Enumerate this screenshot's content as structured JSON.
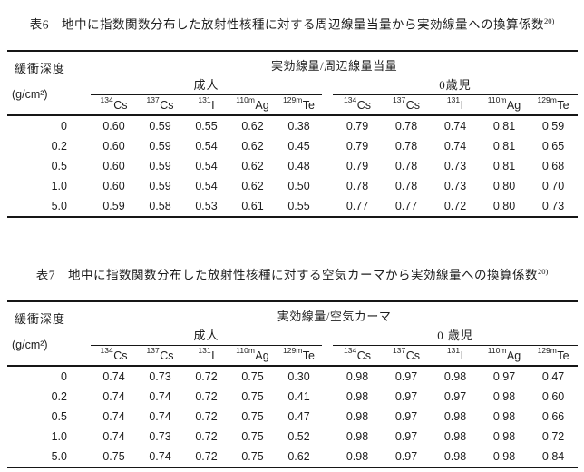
{
  "colors": {
    "background": "#ffffff",
    "text": "#1d1d1d",
    "rule": "#161616"
  },
  "document": {
    "tables": [
      {
        "title": "表6　地中に指数関数分布した放射性核種に対する周辺線量当量から実効線量への換算係数",
        "title_ref": "20)",
        "quantity_header": "実効線量/周辺線量当量",
        "depth_header": "緩衝深度",
        "depth_unit": "(g/cm²)",
        "groups": [
          {
            "label": "成人",
            "nuclides": [
              {
                "mass": "134",
                "symbol": "Cs"
              },
              {
                "mass": "137",
                "symbol": "Cs"
              },
              {
                "mass": "131",
                "symbol": "I"
              },
              {
                "mass": "110m",
                "symbol": "Ag"
              },
              {
                "mass": "129m",
                "symbol": "Te"
              }
            ]
          },
          {
            "label": "0歳児",
            "nuclides": [
              {
                "mass": "134",
                "symbol": "Cs"
              },
              {
                "mass": "137",
                "symbol": "Cs"
              },
              {
                "mass": "131",
                "symbol": "I"
              },
              {
                "mass": "110m",
                "symbol": "Ag"
              },
              {
                "mass": "129m",
                "symbol": "Te"
              }
            ]
          }
        ],
        "rows": [
          {
            "depth": "0",
            "adult": [
              "0.60",
              "0.59",
              "0.55",
              "0.62",
              "0.38"
            ],
            "infant": [
              "0.79",
              "0.78",
              "0.74",
              "0.81",
              "0.59"
            ]
          },
          {
            "depth": "0.2",
            "adult": [
              "0.60",
              "0.59",
              "0.54",
              "0.62",
              "0.45"
            ],
            "infant": [
              "0.79",
              "0.78",
              "0.74",
              "0.81",
              "0.65"
            ]
          },
          {
            "depth": "0.5",
            "adult": [
              "0.60",
              "0.59",
              "0.54",
              "0.62",
              "0.48"
            ],
            "infant": [
              "0.79",
              "0.78",
              "0.73",
              "0.81",
              "0.68"
            ]
          },
          {
            "depth": "1.0",
            "adult": [
              "0.60",
              "0.59",
              "0.54",
              "0.62",
              "0.50"
            ],
            "infant": [
              "0.78",
              "0.78",
              "0.73",
              "0.80",
              "0.70"
            ]
          },
          {
            "depth": "5.0",
            "adult": [
              "0.59",
              "0.58",
              "0.53",
              "0.61",
              "0.55"
            ],
            "infant": [
              "0.77",
              "0.77",
              "0.72",
              "0.80",
              "0.73"
            ]
          }
        ]
      },
      {
        "title": "表7　地中に指数関数分布した放射性核種に対する空気カーマから実効線量への換算係数",
        "title_ref": "20)",
        "quantity_header": "実効線量/空気カーマ",
        "depth_header": "緩衝深度",
        "depth_unit": "(g/cm²)",
        "groups": [
          {
            "label": "成人",
            "nuclides": [
              {
                "mass": "134",
                "symbol": "Cs"
              },
              {
                "mass": "137",
                "symbol": "Cs"
              },
              {
                "mass": "131",
                "symbol": "I"
              },
              {
                "mass": "110m",
                "symbol": "Ag"
              },
              {
                "mass": "129m",
                "symbol": "Te"
              }
            ]
          },
          {
            "label": "0 歳児",
            "nuclides": [
              {
                "mass": "134",
                "symbol": "Cs"
              },
              {
                "mass": "137",
                "symbol": "Cs"
              },
              {
                "mass": "131",
                "symbol": "I"
              },
              {
                "mass": "110m",
                "symbol": "Ag"
              },
              {
                "mass": "129m",
                "symbol": "Te"
              }
            ]
          }
        ],
        "rows": [
          {
            "depth": "0",
            "adult": [
              "0.74",
              "0.73",
              "0.72",
              "0.75",
              "0.30"
            ],
            "infant": [
              "0.98",
              "0.97",
              "0.98",
              "0.97",
              "0.47"
            ]
          },
          {
            "depth": "0.2",
            "adult": [
              "0.74",
              "0.74",
              "0.72",
              "0.75",
              "0.41"
            ],
            "infant": [
              "0.98",
              "0.97",
              "0.97",
              "0.98",
              "0.60"
            ]
          },
          {
            "depth": "0.5",
            "adult": [
              "0.74",
              "0.74",
              "0.72",
              "0.75",
              "0.47"
            ],
            "infant": [
              "0.98",
              "0.97",
              "0.98",
              "0.98",
              "0.66"
            ]
          },
          {
            "depth": "1.0",
            "adult": [
              "0.74",
              "0.73",
              "0.72",
              "0.75",
              "0.52"
            ],
            "infant": [
              "0.98",
              "0.97",
              "0.98",
              "0.98",
              "0.72"
            ]
          },
          {
            "depth": "5.0",
            "adult": [
              "0.75",
              "0.74",
              "0.72",
              "0.75",
              "0.62"
            ],
            "infant": [
              "0.98",
              "0.97",
              "0.98",
              "0.98",
              "0.84"
            ]
          }
        ]
      }
    ]
  }
}
